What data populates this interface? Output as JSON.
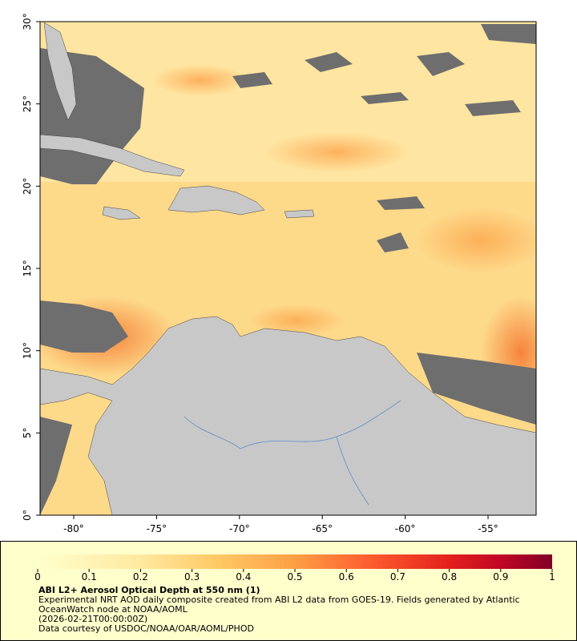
{
  "map": {
    "xlim": [
      -82.03,
      -52.1
    ],
    "ylim": [
      0,
      30
    ],
    "xticks": [
      {
        "value": -80,
        "label": "-80°"
      },
      {
        "value": -75,
        "label": "-75°"
      },
      {
        "value": -70,
        "label": "-70°"
      },
      {
        "value": -65,
        "label": "-65°"
      },
      {
        "value": -60,
        "label": "-60°"
      },
      {
        "value": -55,
        "label": "-55°"
      }
    ],
    "yticks": [
      {
        "value": 0,
        "label": "0°"
      },
      {
        "value": 5,
        "label": "5°"
      },
      {
        "value": 10,
        "label": "10°"
      },
      {
        "value": 15,
        "label": "15°"
      },
      {
        "value": 20,
        "label": "20°"
      },
      {
        "value": 25,
        "label": "25°"
      },
      {
        "value": 30,
        "label": "30°"
      }
    ]
  },
  "colorbar": {
    "clim": [
      0,
      1
    ],
    "ticks": [
      0,
      0.1,
      0.2,
      0.3,
      0.4,
      0.5,
      0.6,
      0.7,
      0.8,
      0.9,
      1
    ]
  },
  "legend": {
    "title": "ABI L2+ Aerosol Optical Depth at 550 nm (1)",
    "description": "Experimental NRT AOD daily composite created from ABI L2 data from GOES-19. Fields generated by Atlantic OceanWatch node at NOAA/AOML",
    "date": "(2026-02-21T00:00:00Z)",
    "credit": "Data courtesy of USDOC/NOAA/OAR/AOML/PHOD"
  }
}
